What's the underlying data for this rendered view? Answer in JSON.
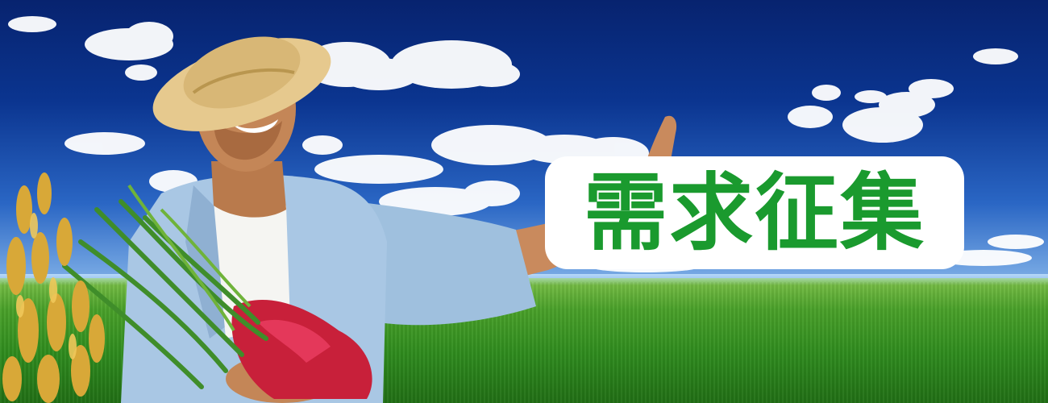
{
  "banner": {
    "headline": "需求征集",
    "headline_color": "#1a9a2e",
    "headline_outline_color": "#ffffff"
  },
  "scene": {
    "sky_color": "#0b3590",
    "field_color": "#3a9a22",
    "subject": "smiling-farmer-with-rice-sheaf"
  }
}
